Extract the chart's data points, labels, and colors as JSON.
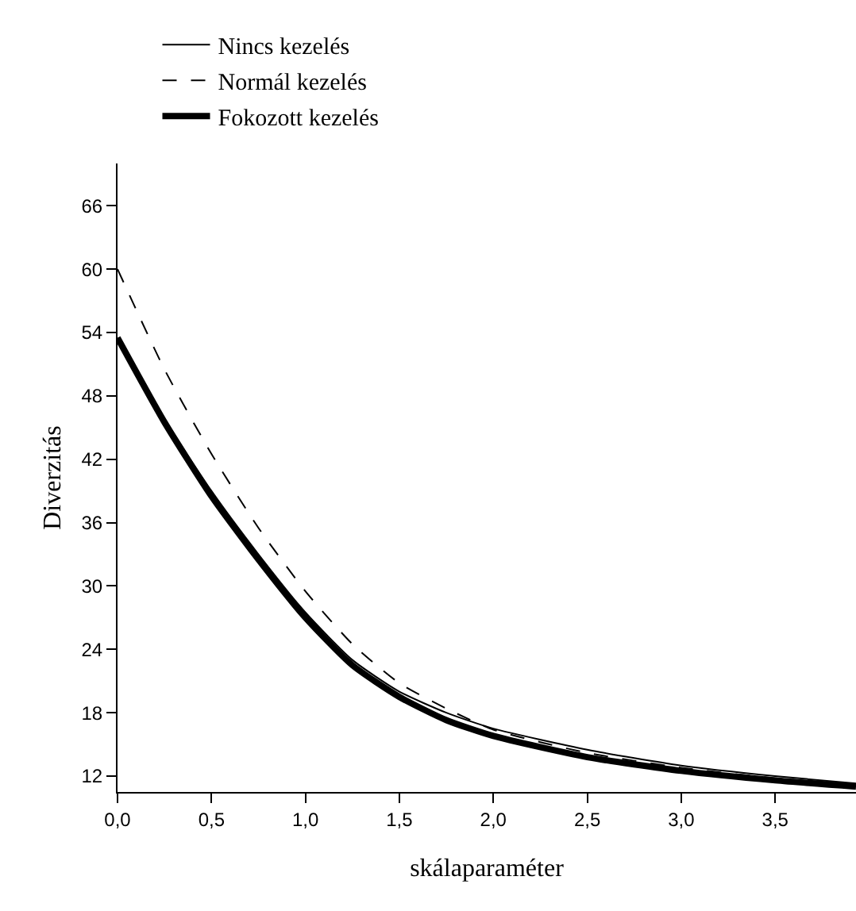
{
  "chart_data": {
    "type": "line",
    "xlabel": "skálaparaméter",
    "ylabel": "Diverzitás",
    "x": [
      0,
      0.25,
      0.5,
      0.75,
      1.0,
      1.25,
      1.5,
      1.75,
      2.0,
      2.5,
      3.0,
      3.5,
      3.93
    ],
    "series": [
      {
        "name": "Nincs kezelés",
        "color": "#000000",
        "line_style": "solid",
        "values": [
          53.5,
          45.8,
          39,
          33,
          27.5,
          23,
          20,
          18,
          16.5,
          14.5,
          13,
          12,
          11.3
        ]
      },
      {
        "name": "Normál kezelés",
        "color": "#000000",
        "line_style": "dashed",
        "values": [
          60,
          50.5,
          42.5,
          35.5,
          29.5,
          24.5,
          20.8,
          18.4,
          16.4,
          14.2,
          12.8,
          11.8,
          11.2
        ]
      },
      {
        "name": "Fokozott kezelés",
        "color": "#000000",
        "line_style": "solid",
        "values": [
          53.5,
          45.5,
          38.5,
          32.5,
          27,
          22.5,
          19.5,
          17.3,
          15.8,
          13.8,
          12.5,
          11.6,
          11
        ]
      }
    ],
    "xlim": [
      0,
      3.93
    ],
    "xticks": [
      {
        "value": 0,
        "label": "0,0"
      },
      {
        "value": 0.5,
        "label": "0,5"
      },
      {
        "value": 1,
        "label": "1,0"
      },
      {
        "value": 1.5,
        "label": "1,5"
      },
      {
        "value": 2,
        "label": "2,0"
      },
      {
        "value": 2.5,
        "label": "2,5"
      },
      {
        "value": 3,
        "label": "3,0"
      },
      {
        "value": 3.5,
        "label": "3,5"
      }
    ],
    "ylim": [
      10.5,
      70
    ],
    "yticks": [
      12,
      18,
      24,
      30,
      36,
      42,
      48,
      54,
      60,
      66
    ],
    "grid": false,
    "legend": "top left",
    "marker": "none"
  }
}
